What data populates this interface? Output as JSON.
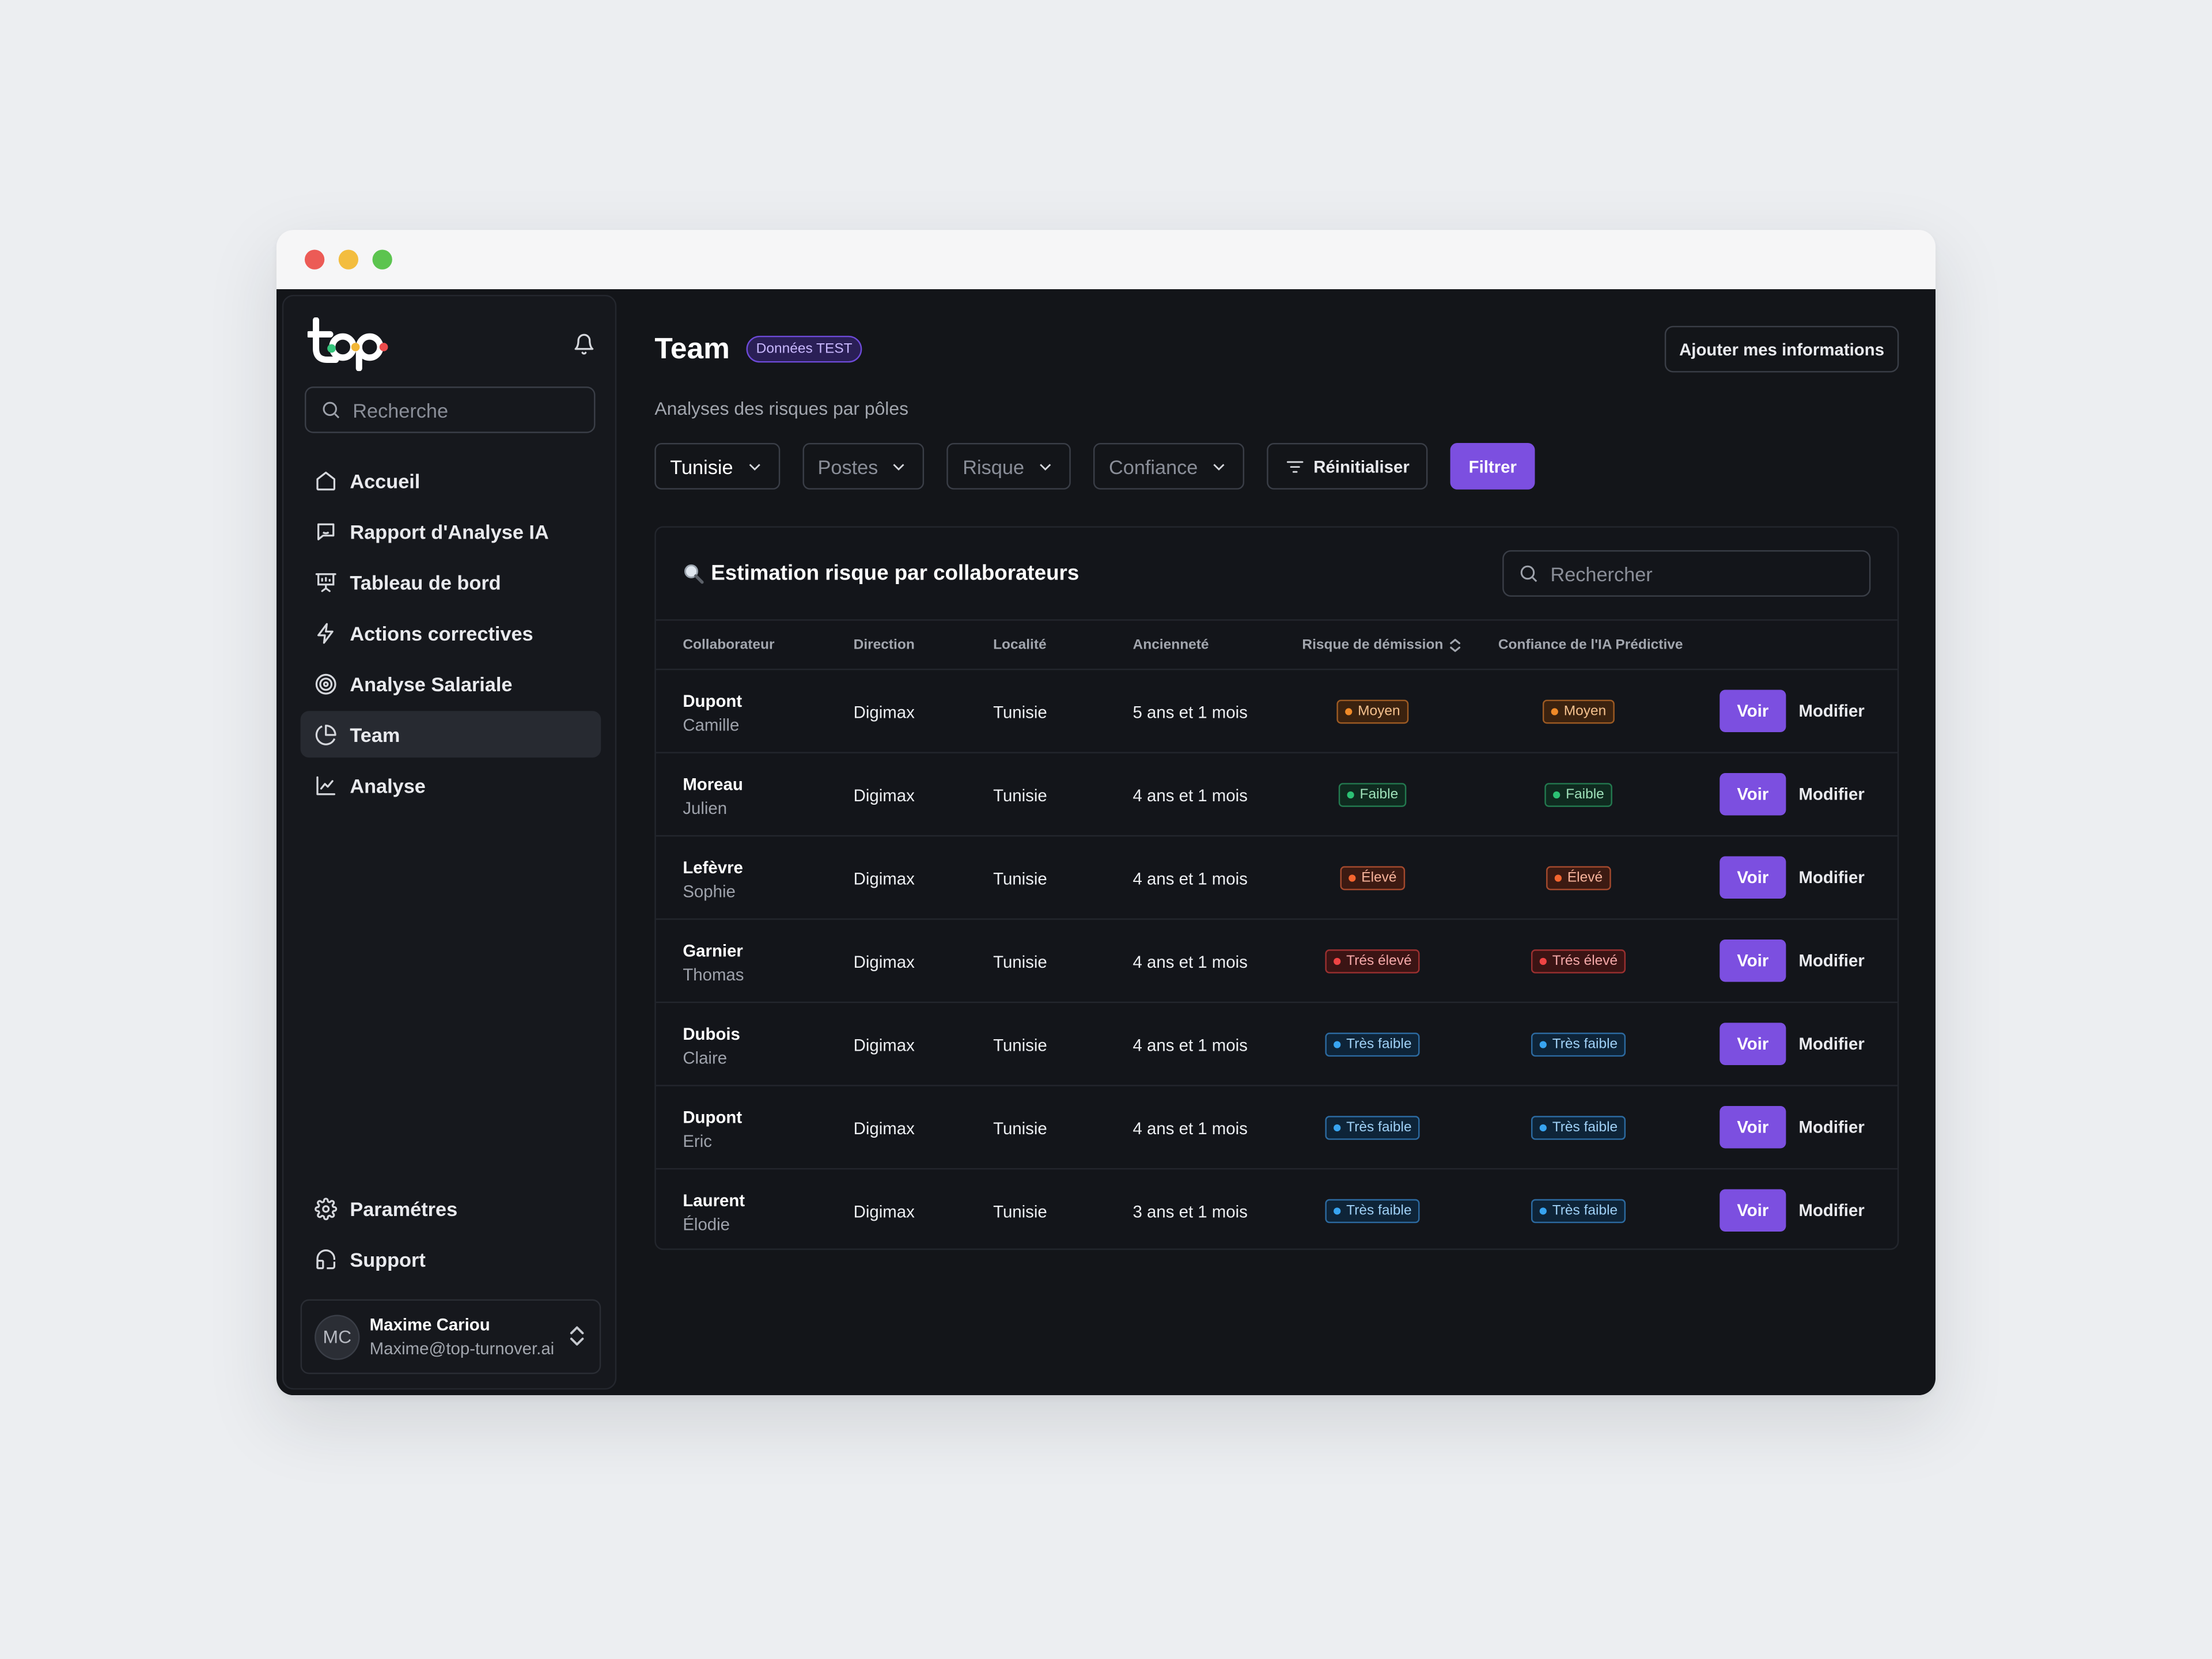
{
  "window": {
    "dots": [
      "#ec5b56",
      "#f3bd3f",
      "#5cc44f"
    ]
  },
  "sidebar": {
    "search_placeholder": "Recherche",
    "nav": [
      {
        "label": "Accueil",
        "icon": "home-icon",
        "active": false
      },
      {
        "label": "Rapport d'Analyse IA",
        "icon": "message-icon",
        "active": false
      },
      {
        "label": "Tableau de bord",
        "icon": "presentation-icon",
        "active": false
      },
      {
        "label": "Actions correctives",
        "icon": "bolt-icon",
        "active": false
      },
      {
        "label": "Analyse Salariale",
        "icon": "target-icon",
        "active": false
      },
      {
        "label": "Team",
        "icon": "pie-chart-icon",
        "active": true
      },
      {
        "label": "Analyse",
        "icon": "line-chart-icon",
        "active": false
      }
    ],
    "bottom": [
      {
        "label": "Paramétres",
        "icon": "gear-icon"
      },
      {
        "label": "Support",
        "icon": "support-icon"
      }
    ],
    "user": {
      "initials": "MC",
      "name": "Maxime Cariou",
      "email": "Maxime@top-turnover.ai"
    }
  },
  "header": {
    "title": "Team",
    "badge": "Données TEST",
    "add_button": "Ajouter mes informations",
    "subtitle": "Analyses des risques par pôles"
  },
  "filters": {
    "country": "Tunisie",
    "postes": "Postes",
    "risque": "Risque",
    "confiance": "Confiance",
    "reset": "Réinitialiser",
    "apply": "Filtrer"
  },
  "table": {
    "title": "Estimation risque par collaborateurs",
    "search_placeholder": "Rechercher",
    "columns": [
      "Collaborateur",
      "Direction",
      "Localité",
      "Ancienneté",
      "Risque de démission",
      "Confiance de l'IA Prédictive"
    ],
    "view_label": "Voir",
    "edit_label": "Modifier",
    "rows": [
      {
        "last": "Dupont",
        "first": "Camille",
        "direction": "Digimax",
        "loc": "Tunisie",
        "anc": "5 ans et 1 mois",
        "risk": "Moyen",
        "risk_class": "b-moyen",
        "conf": "Moyen",
        "conf_class": "b-moyen"
      },
      {
        "last": "Moreau",
        "first": "Julien",
        "direction": "Digimax",
        "loc": "Tunisie",
        "anc": "4 ans et 1 mois",
        "risk": "Faible",
        "risk_class": "b-faible",
        "conf": "Faible",
        "conf_class": "b-faible"
      },
      {
        "last": "Lefèvre",
        "first": "Sophie",
        "direction": "Digimax",
        "loc": "Tunisie",
        "anc": "4 ans et 1 mois",
        "risk": "Élevé",
        "risk_class": "b-eleve",
        "conf": "Élevé",
        "conf_class": "b-eleve"
      },
      {
        "last": "Garnier",
        "first": "Thomas",
        "direction": "Digimax",
        "loc": "Tunisie",
        "anc": "4 ans et 1 mois",
        "risk": "Trés élevé",
        "risk_class": "b-tres-eleve",
        "conf": "Trés élevé",
        "conf_class": "b-tres-eleve"
      },
      {
        "last": "Dubois",
        "first": "Claire",
        "direction": "Digimax",
        "loc": "Tunisie",
        "anc": "4 ans et 1 mois",
        "risk": "Très faible",
        "risk_class": "b-tres-faible",
        "conf": "Très faible",
        "conf_class": "b-tres-faible"
      },
      {
        "last": "Dupont",
        "first": "Eric",
        "direction": "Digimax",
        "loc": "Tunisie",
        "anc": "4 ans et 1 mois",
        "risk": "Très faible",
        "risk_class": "b-tres-faible",
        "conf": "Très faible",
        "conf_class": "b-tres-faible"
      },
      {
        "last": "Laurent",
        "first": "Élodie",
        "direction": "Digimax",
        "loc": "Tunisie",
        "anc": "3 ans et 1 mois",
        "risk": "Très faible",
        "risk_class": "b-tres-faible",
        "conf": "Très faible",
        "conf_class": "b-tres-faible"
      }
    ]
  },
  "colors": {
    "accent": "#7c4fe0",
    "background": "#131519",
    "page_bg": "#eceef1"
  }
}
